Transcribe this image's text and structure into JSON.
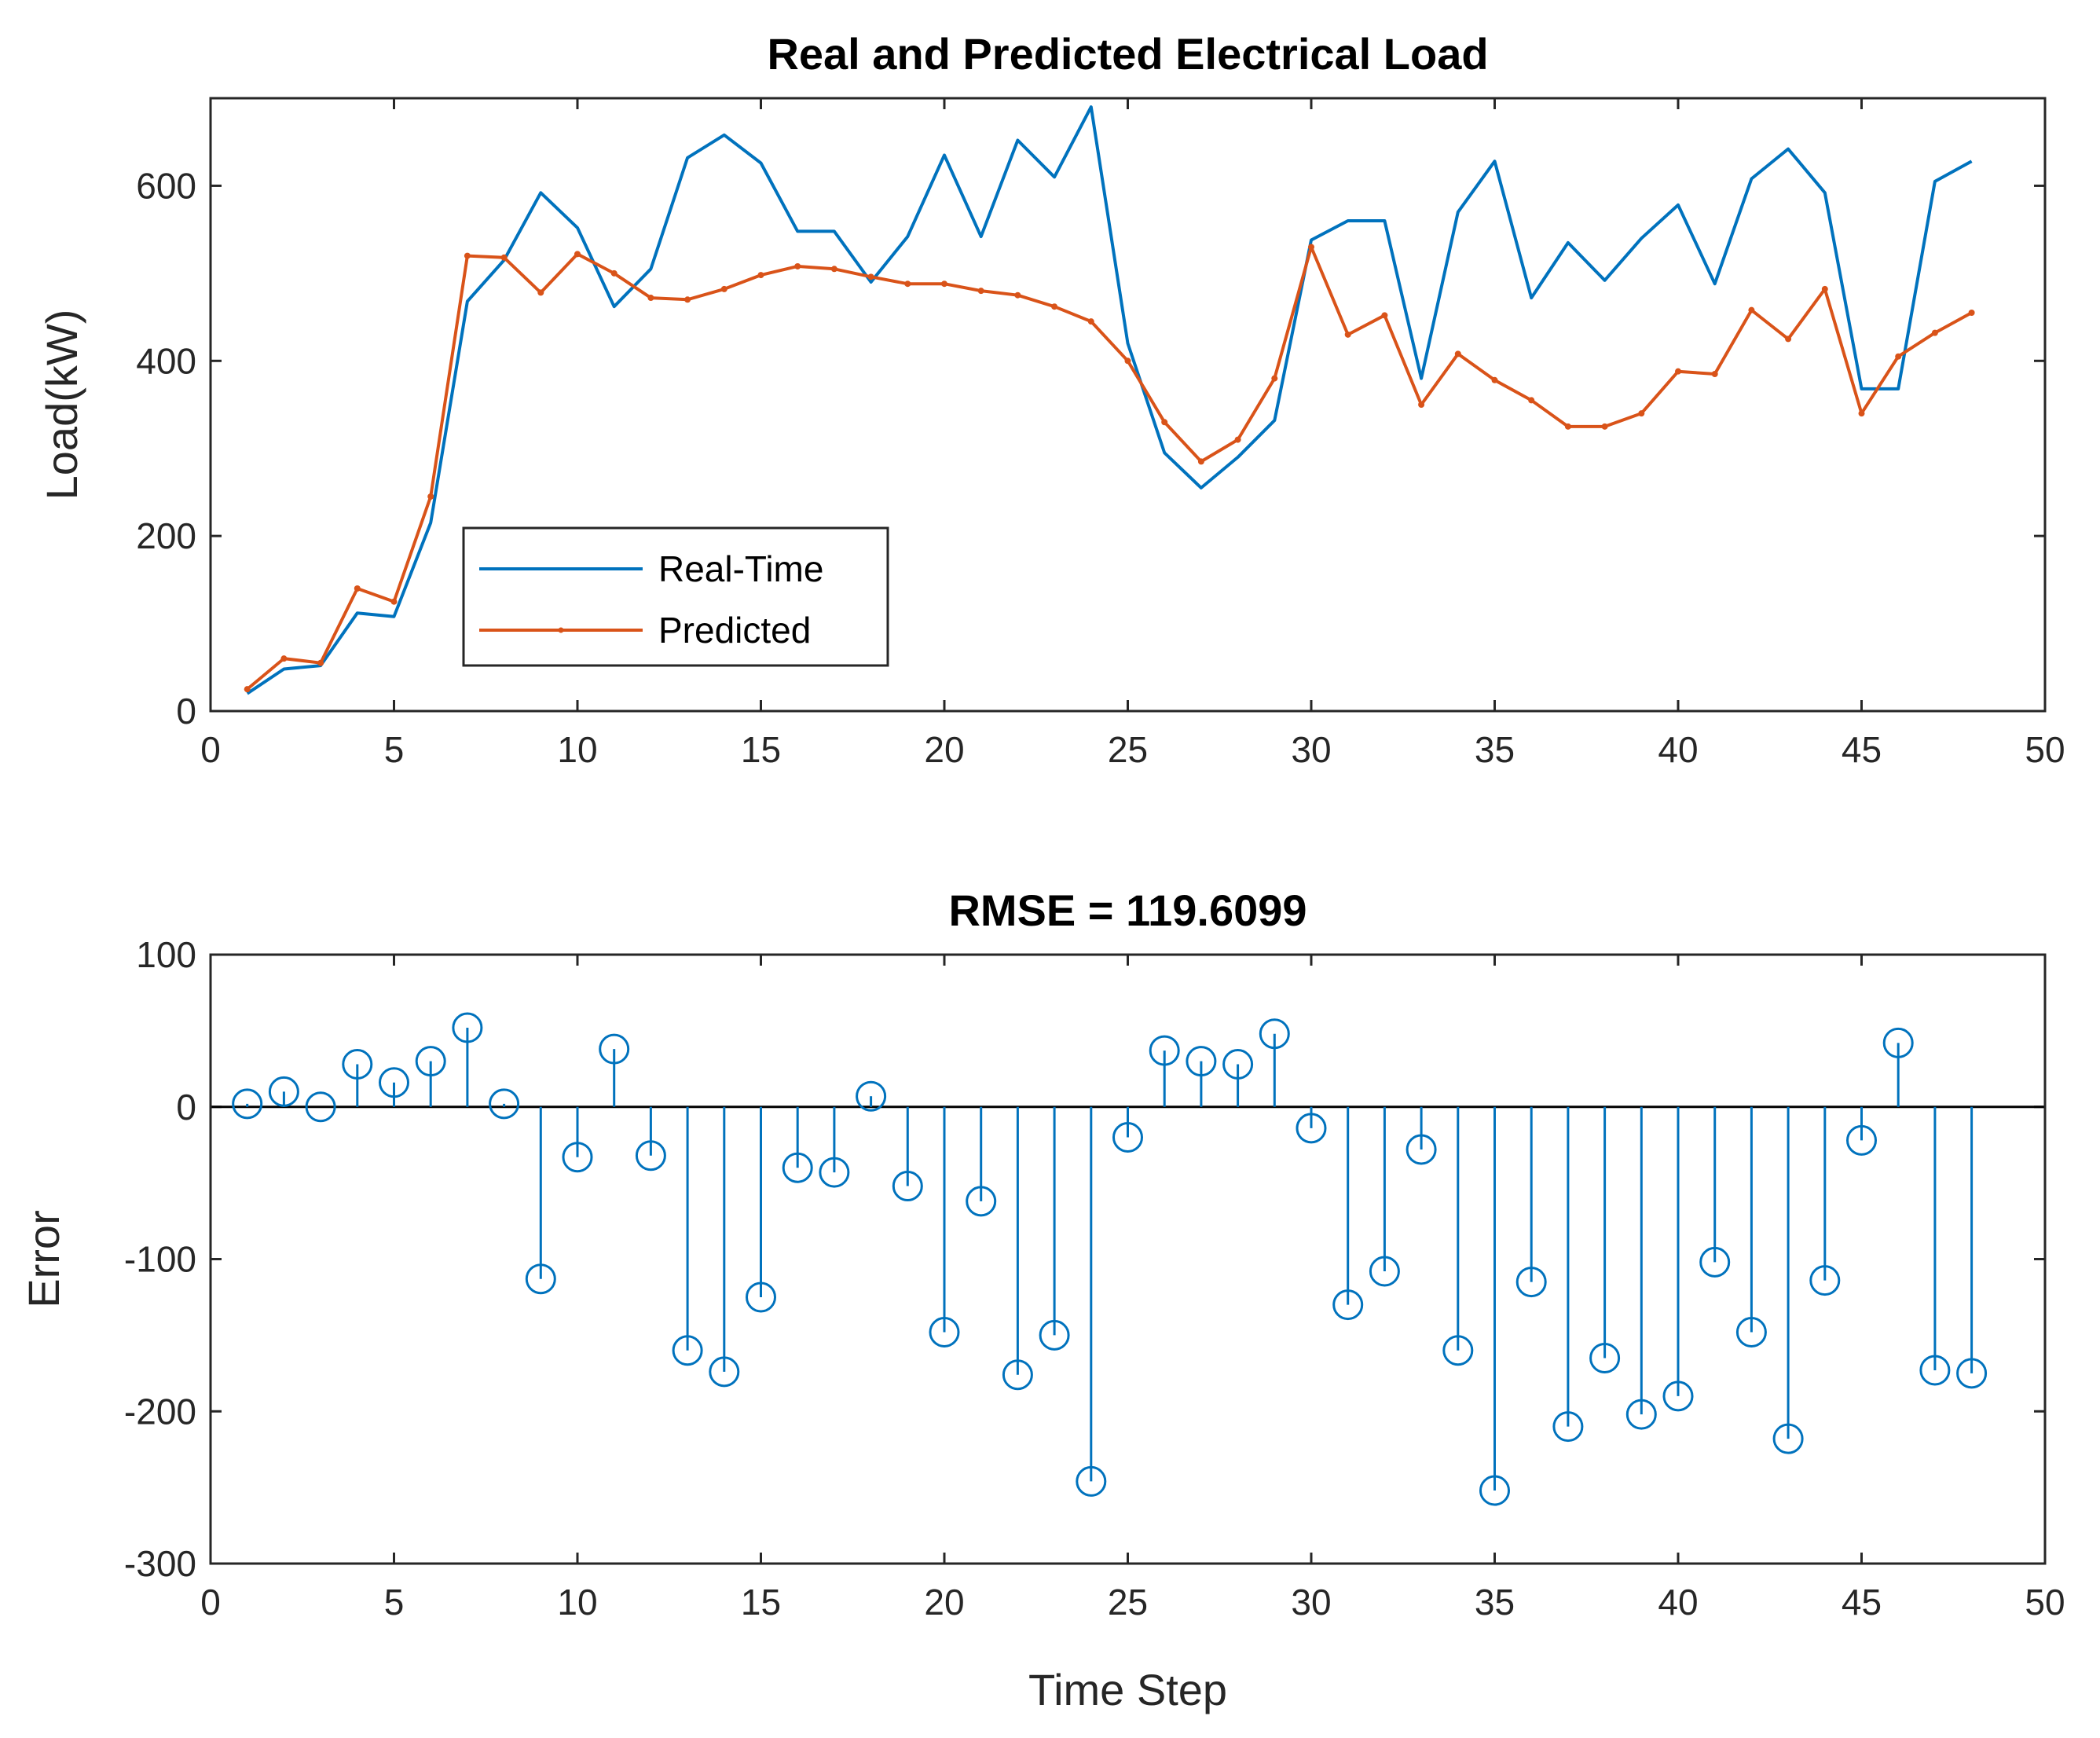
{
  "chart_data": [
    {
      "type": "line",
      "title": "Real and Predicted Electrical Load",
      "xlabel": "",
      "ylabel": "Load(kW)",
      "xlim": [
        0,
        50
      ],
      "ylim": [
        0,
        700
      ],
      "xticks": [
        0,
        5,
        10,
        15,
        20,
        25,
        30,
        35,
        40,
        45,
        50
      ],
      "yticks": [
        0,
        200,
        400,
        600
      ],
      "legend_position": "lower-left",
      "series": [
        {
          "name": "Real-Time",
          "color": "#0072BD",
          "marker": "none",
          "x": [
            1,
            2,
            3,
            4,
            5,
            6,
            7,
            8,
            9,
            10,
            11,
            12,
            13,
            14,
            15,
            16,
            17,
            18,
            19,
            20,
            21,
            22,
            23,
            24,
            25,
            26,
            27,
            28,
            29,
            30,
            31,
            32,
            33,
            34,
            35,
            36,
            37,
            38,
            39,
            40,
            41,
            42,
            43,
            44,
            45,
            46,
            47,
            48
          ],
          "values": [
            20,
            48,
            52,
            112,
            108,
            215,
            468,
            515,
            592,
            552,
            462,
            505,
            632,
            658,
            626,
            548,
            548,
            490,
            542,
            635,
            542,
            652,
            610,
            690,
            420,
            295,
            255,
            290,
            332,
            538,
            560,
            560,
            380,
            570,
            628,
            472,
            535,
            492,
            540,
            578,
            488,
            608,
            642,
            592,
            368,
            368,
            605,
            628
          ]
        },
        {
          "name": "Predicted",
          "color": "#D95319",
          "marker": "dot",
          "x": [
            1,
            2,
            3,
            4,
            5,
            6,
            7,
            8,
            9,
            10,
            11,
            12,
            13,
            14,
            15,
            16,
            17,
            18,
            19,
            20,
            21,
            22,
            23,
            24,
            25,
            26,
            27,
            28,
            29,
            30,
            31,
            32,
            33,
            34,
            35,
            36,
            37,
            38,
            39,
            40,
            41,
            42,
            43,
            44,
            45,
            46,
            47,
            48
          ],
          "values": [
            25,
            60,
            55,
            140,
            125,
            245,
            520,
            518,
            478,
            522,
            500,
            472,
            470,
            482,
            498,
            508,
            505,
            496,
            488,
            488,
            480,
            475,
            462,
            445,
            400,
            330,
            285,
            310,
            380,
            530,
            430,
            452,
            350,
            408,
            378,
            355,
            325,
            325,
            340,
            388,
            385,
            458,
            425,
            482,
            340,
            405,
            432,
            455
          ]
        }
      ]
    },
    {
      "type": "stem",
      "title": "RMSE = 119.6099",
      "xlabel": "Time Step",
      "ylabel": "Error",
      "xlim": [
        0,
        50
      ],
      "ylim": [
        -300,
        100
      ],
      "xticks": [
        0,
        5,
        10,
        15,
        20,
        25,
        30,
        35,
        40,
        45,
        50
      ],
      "yticks": [
        -300,
        -200,
        -100,
        0,
        100
      ],
      "baseline": 0,
      "color": "#0072BD",
      "x": [
        1,
        2,
        3,
        4,
        5,
        6,
        7,
        8,
        9,
        10,
        11,
        12,
        13,
        14,
        15,
        16,
        17,
        18,
        19,
        20,
        21,
        22,
        23,
        24,
        25,
        26,
        27,
        28,
        29,
        30,
        31,
        32,
        33,
        34,
        35,
        36,
        37,
        38,
        39,
        40,
        41,
        42,
        43,
        44,
        45,
        46,
        47,
        48
      ],
      "values": [
        2,
        10,
        0,
        28,
        16,
        30,
        52,
        2,
        -113,
        -33,
        38,
        -32,
        -160,
        -174,
        -125,
        -40,
        -43,
        7,
        -52,
        -148,
        -62,
        -176,
        -150,
        -246,
        -20,
        37,
        30,
        28,
        48,
        -14,
        -130,
        -108,
        -28,
        -160,
        -252,
        -115,
        -210,
        -165,
        -202,
        -190,
        -102,
        -148,
        -218,
        -114,
        -22,
        42,
        -173,
        -175
      ]
    }
  ]
}
